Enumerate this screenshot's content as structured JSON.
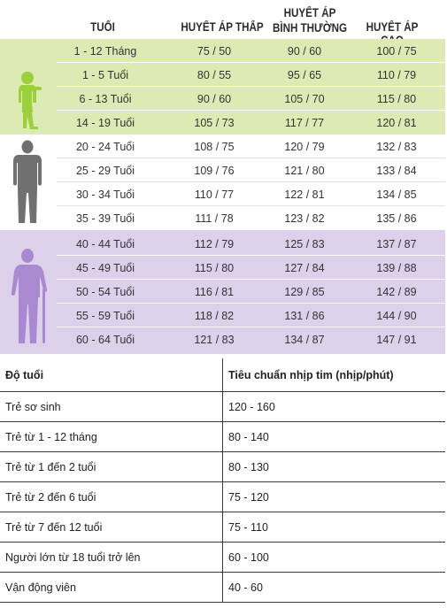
{
  "bp_chart": {
    "headers": {
      "age": "TUỔI",
      "low": "HUYẾT ÁP THẤP",
      "normal_line1": "HUYẾT ÁP",
      "normal_line2": "BÌNH THƯỜNG",
      "high": "HUYẾT ÁP CAO"
    },
    "groups": {
      "children": {
        "color": "#dcebb4",
        "icon": "child-figure-icon",
        "rows": [
          {
            "age": "1 - 12  Tháng",
            "low": "75 / 50",
            "normal": "90 / 60",
            "high": "100 / 75"
          },
          {
            "age": "1 -  5  Tuổi",
            "low": "80 / 55",
            "normal": "95 / 65",
            "high": "110 / 79"
          },
          {
            "age": "6 - 13  Tuổi",
            "low": "90 / 60",
            "normal": "105 / 70",
            "high": "115 / 80"
          },
          {
            "age": "14 - 19  Tuổi",
            "low": "105 / 73",
            "normal": "117 / 77",
            "high": "120 / 81"
          }
        ]
      },
      "adults": {
        "color": "#ffffff",
        "icon": "adult-figure-icon",
        "rows": [
          {
            "age": "20 -  24  Tuổi",
            "low": "108 / 75",
            "normal": "120 / 79",
            "high": "132 / 83"
          },
          {
            "age": "25 -  29  Tuổi",
            "low": "109 / 76",
            "normal": "121 / 80",
            "high": "133 / 84"
          },
          {
            "age": "30 -  34  Tuổi",
            "low": "110 / 77",
            "normal": "122 / 81",
            "high": "134 / 85"
          },
          {
            "age": "35 -  39  Tuổi",
            "low": "111 / 78",
            "normal": "123 / 82",
            "high": "135 / 86"
          }
        ]
      },
      "seniors": {
        "color": "#ddd0ea",
        "icon": "elderly-figure-icon",
        "rows": [
          {
            "age": "40 -  44  Tuổi",
            "low": "112 / 79",
            "normal": "125 / 83",
            "high": "137 / 87"
          },
          {
            "age": "45 -  49  Tuổi",
            "low": "115 / 80",
            "normal": "127 / 84",
            "high": "139 / 88"
          },
          {
            "age": "50 -  54  Tuổi",
            "low": "116 / 81",
            "normal": "129 / 85",
            "high": "142 / 89"
          },
          {
            "age": "55 -  59  Tuổi",
            "low": "118 / 82",
            "normal": "131 / 86",
            "high": "144 / 90"
          },
          {
            "age": "60 -  64  Tuổi",
            "low": "121 / 83",
            "normal": "134 / 87",
            "high": "147 / 91"
          }
        ]
      }
    }
  },
  "hr_table": {
    "headers": [
      "Độ tuổi",
      "Tiêu chuẩn nhịp tim (nhịp/phút)"
    ],
    "rows": [
      [
        "Trẻ sơ sinh",
        "120 - 160"
      ],
      [
        "Trẻ từ 1 - 12 tháng",
        "80 - 140"
      ],
      [
        "Trẻ từ 1 đến 2 tuổi",
        "80 - 130"
      ],
      [
        "Trẻ từ 2 đến 6 tuổi",
        "75 - 120"
      ],
      [
        "Trẻ từ 7 đến 12 tuổi",
        "75 - 110"
      ],
      [
        "Người lớn từ 18 tuổi trở lên",
        "60 - 100"
      ],
      [
        "Vận động viên",
        "40 - 60"
      ]
    ]
  }
}
